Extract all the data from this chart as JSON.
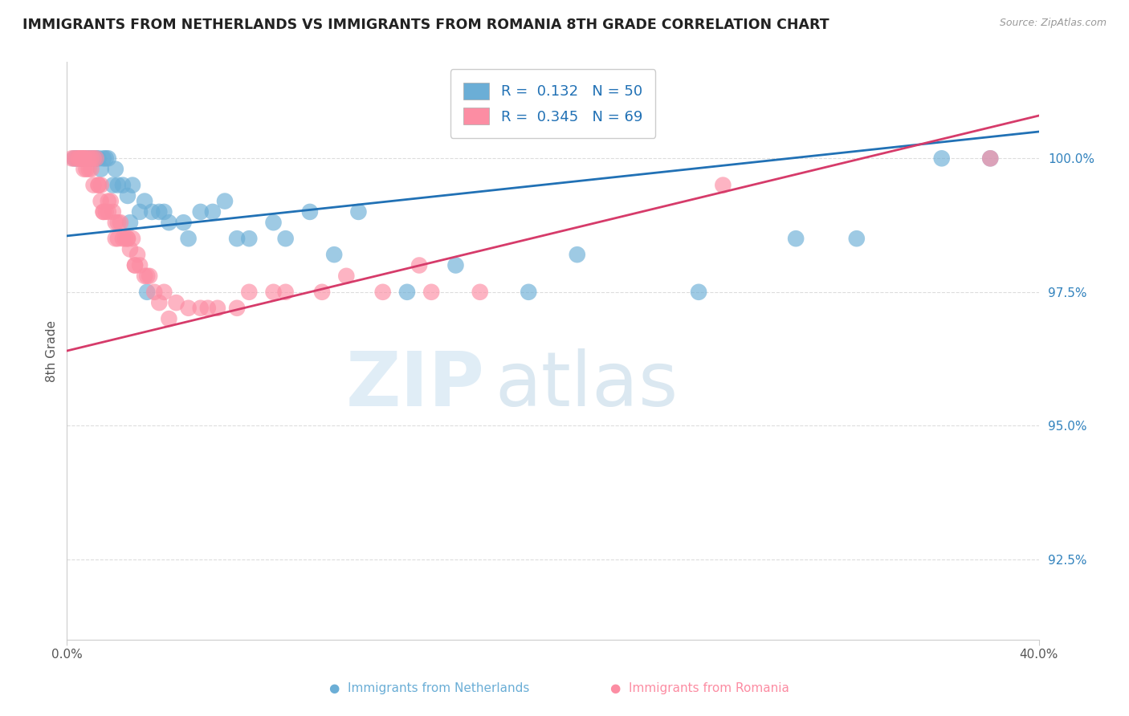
{
  "title": "IMMIGRANTS FROM NETHERLANDS VS IMMIGRANTS FROM ROMANIA 8TH GRADE CORRELATION CHART",
  "source": "Source: ZipAtlas.com",
  "ylabel": "8th Grade",
  "xmin": 0.0,
  "xmax": 40.0,
  "ymin": 91.0,
  "ymax": 101.8,
  "yticks": [
    92.5,
    95.0,
    97.5,
    100.0
  ],
  "ytick_labels": [
    "92.5%",
    "95.0%",
    "97.5%",
    "100.0%"
  ],
  "legend_r1": "R =  0.132   N = 50",
  "legend_r2": "R =  0.345   N = 69",
  "color_netherlands": "#6baed6",
  "color_romania": "#fc8da3",
  "color_line_netherlands": "#2171b5",
  "color_line_romania": "#d63b6a",
  "nl_line_x0": 0.0,
  "nl_line_y0": 98.55,
  "nl_line_x1": 40.0,
  "nl_line_y1": 100.5,
  "ro_line_x0": 0.0,
  "ro_line_y0": 96.4,
  "ro_line_x1": 40.0,
  "ro_line_y1": 100.8,
  "netherlands_x": [
    0.3,
    0.5,
    0.6,
    0.7,
    0.9,
    1.0,
    1.1,
    1.2,
    1.3,
    1.5,
    1.6,
    1.7,
    2.0,
    2.1,
    2.3,
    2.5,
    2.7,
    3.0,
    3.2,
    3.5,
    3.8,
    4.2,
    4.8,
    5.5,
    6.5,
    7.0,
    8.5,
    10.0,
    12.0,
    14.0,
    21.0,
    36.0,
    0.8,
    1.4,
    1.9,
    2.6,
    4.0,
    5.0,
    6.0,
    7.5,
    9.0,
    11.0,
    16.0,
    19.0,
    26.0,
    30.0,
    32.5,
    38.0,
    0.4,
    3.3
  ],
  "netherlands_y": [
    100.0,
    100.0,
    100.0,
    100.0,
    100.0,
    100.0,
    100.0,
    100.0,
    100.0,
    100.0,
    100.0,
    100.0,
    99.8,
    99.5,
    99.5,
    99.3,
    99.5,
    99.0,
    99.2,
    99.0,
    99.0,
    98.8,
    98.8,
    99.0,
    99.2,
    98.5,
    98.8,
    99.0,
    99.0,
    97.5,
    98.2,
    100.0,
    100.0,
    99.8,
    99.5,
    98.8,
    99.0,
    98.5,
    99.0,
    98.5,
    98.5,
    98.2,
    98.0,
    97.5,
    97.5,
    98.5,
    98.5,
    100.0,
    100.0,
    97.5
  ],
  "romania_x": [
    0.2,
    0.3,
    0.4,
    0.5,
    0.6,
    0.6,
    0.7,
    0.7,
    0.8,
    0.8,
    0.9,
    1.0,
    1.0,
    1.1,
    1.1,
    1.2,
    1.3,
    1.4,
    1.4,
    1.5,
    1.6,
    1.7,
    1.8,
    1.9,
    2.0,
    2.1,
    2.2,
    2.3,
    2.4,
    2.5,
    2.6,
    2.7,
    2.8,
    3.0,
    3.2,
    3.4,
    3.6,
    4.0,
    4.5,
    5.0,
    5.5,
    6.2,
    7.5,
    8.5,
    10.5,
    13.0,
    15.0,
    17.0,
    27.0,
    38.0,
    0.5,
    0.9,
    1.3,
    1.7,
    2.1,
    2.5,
    2.9,
    3.3,
    4.2,
    5.8,
    7.0,
    9.0,
    11.5,
    14.5,
    0.7,
    1.5,
    2.0,
    2.8,
    3.8
  ],
  "romania_y": [
    100.0,
    100.0,
    100.0,
    100.0,
    100.0,
    100.0,
    100.0,
    100.0,
    100.0,
    99.8,
    100.0,
    100.0,
    99.8,
    100.0,
    99.5,
    100.0,
    99.5,
    99.5,
    99.2,
    99.0,
    99.0,
    99.0,
    99.2,
    99.0,
    98.8,
    98.5,
    98.8,
    98.5,
    98.5,
    98.5,
    98.3,
    98.5,
    98.0,
    98.0,
    97.8,
    97.8,
    97.5,
    97.5,
    97.3,
    97.2,
    97.2,
    97.2,
    97.5,
    97.5,
    97.5,
    97.5,
    97.5,
    97.5,
    99.5,
    100.0,
    100.0,
    99.8,
    99.5,
    99.2,
    98.8,
    98.5,
    98.2,
    97.8,
    97.0,
    97.2,
    97.2,
    97.5,
    97.8,
    98.0,
    99.8,
    99.0,
    98.5,
    98.0,
    97.3
  ],
  "watermark_zip": "ZIP",
  "watermark_atlas": "atlas",
  "background_color": "#ffffff",
  "grid_color": "#dddddd"
}
